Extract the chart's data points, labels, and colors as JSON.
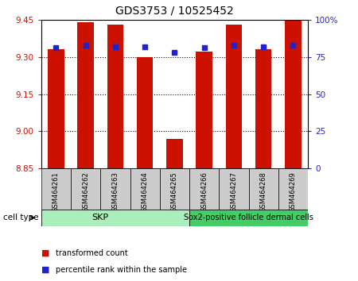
{
  "title": "GDS3753 / 10525452",
  "samples": [
    "GSM464261",
    "GSM464262",
    "GSM464263",
    "GSM464264",
    "GSM464265",
    "GSM464266",
    "GSM464267",
    "GSM464268",
    "GSM464269"
  ],
  "transformed_counts": [
    9.33,
    9.44,
    9.43,
    9.3,
    8.97,
    9.32,
    9.43,
    9.33,
    9.45
  ],
  "percentile_ranks": [
    81,
    83,
    82,
    82,
    78,
    81,
    83,
    82,
    83
  ],
  "ymin": 8.85,
  "ymax": 9.45,
  "yticks": [
    8.85,
    9.0,
    9.15,
    9.3,
    9.45
  ],
  "right_yticks": [
    0,
    25,
    50,
    75,
    100
  ],
  "bar_color": "#cc1100",
  "blue_color": "#2222cc",
  "cell_groups": [
    {
      "label": "SKP",
      "start": 0,
      "end": 4,
      "color": "#aaeebb"
    },
    {
      "label": "Sox2-positive follicle dermal cells",
      "start": 5,
      "end": 8,
      "color": "#44cc66"
    }
  ],
  "cell_type_label": "cell type",
  "legend_items": [
    {
      "color": "#cc1100",
      "label": "transformed count"
    },
    {
      "color": "#2222cc",
      "label": "percentile rank within the sample"
    }
  ],
  "bar_width": 0.55,
  "tick_label_fontsize": 7.5,
  "title_fontsize": 10,
  "ylabel_color_left": "#cc1100",
  "ylabel_color_right": "#2222cc",
  "bg_color": "#ffffff",
  "sample_label_bg": "#cccccc",
  "grid_lines": [
    9.0,
    9.15,
    9.3
  ]
}
